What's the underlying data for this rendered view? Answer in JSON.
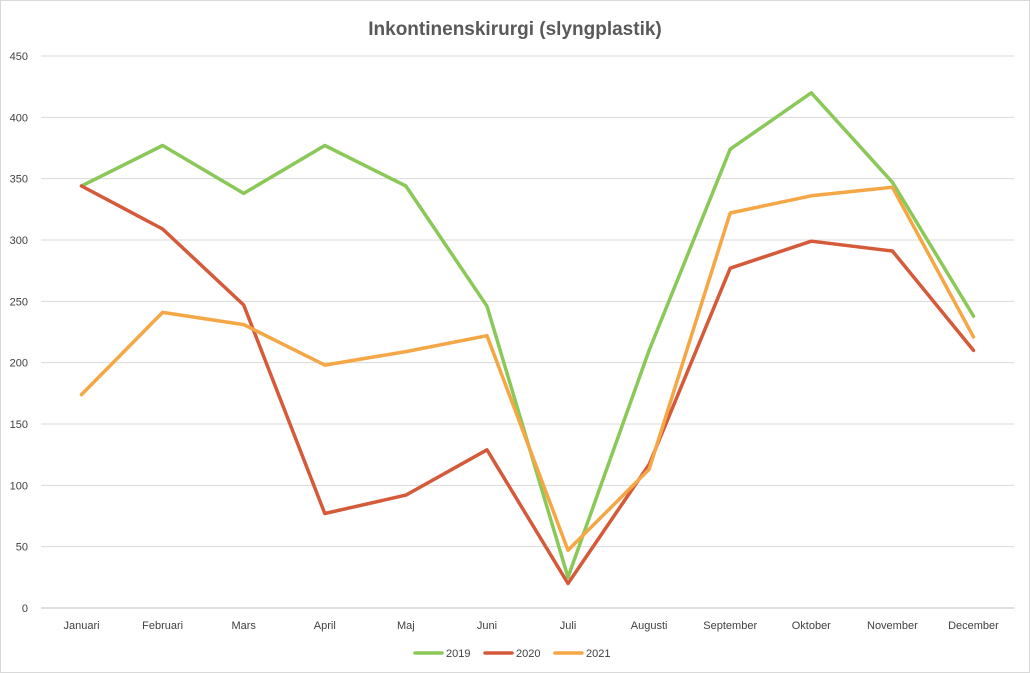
{
  "chart_data": {
    "type": "line",
    "title": "Inkontinenskirurgi (slyngplastik)",
    "xlabel": "",
    "ylabel": "",
    "categories": [
      "Januari",
      "Februari",
      "Mars",
      "April",
      "Maj",
      "Juni",
      "Juli",
      "Augusti",
      "September",
      "Oktober",
      "November",
      "December"
    ],
    "ylim": [
      0,
      450
    ],
    "yticks": [
      0,
      50,
      100,
      150,
      200,
      250,
      300,
      350,
      400,
      450
    ],
    "grid": true,
    "legend_position": "bottom",
    "series": [
      {
        "name": "2019",
        "color": "#8ac858",
        "values": [
          344,
          377,
          338,
          377,
          344,
          246,
          25,
          210,
          374,
          420,
          347,
          238
        ]
      },
      {
        "name": "2020",
        "color": "#d45a3a",
        "values": [
          344,
          309,
          247,
          77,
          92,
          129,
          20,
          117,
          277,
          299,
          291,
          210
        ]
      },
      {
        "name": "2021",
        "color": "#f5a645",
        "values": [
          174,
          241,
          231,
          198,
          209,
          222,
          47,
          113,
          322,
          336,
          343,
          221
        ]
      }
    ]
  }
}
